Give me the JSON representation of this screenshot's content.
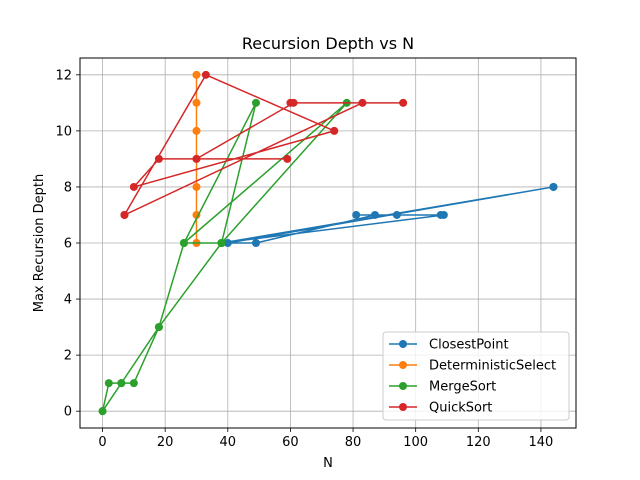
{
  "chart_data": {
    "type": "line",
    "title": "Recursion Depth vs N",
    "xlabel": "N",
    "ylabel": "Max Recursion Depth",
    "xlim": [
      -7.2,
      151.2
    ],
    "ylim": [
      -0.6,
      12.6
    ],
    "xticks": [
      0,
      20,
      40,
      60,
      80,
      100,
      120,
      140
    ],
    "yticks": [
      0,
      2,
      4,
      6,
      8,
      10,
      12
    ],
    "grid": true,
    "legend_position": "lower-right",
    "series": [
      {
        "name": "ClosestPoint",
        "color": "#1f77b4",
        "x": [
          144,
          40,
          49,
          87,
          108,
          81,
          94,
          109,
          38,
          144
        ],
        "y": [
          8,
          6,
          6,
          7,
          7,
          7,
          7,
          7,
          6,
          8
        ]
      },
      {
        "name": "DeterministicSelect",
        "color": "#ff7f0e",
        "x": [
          30,
          30,
          30,
          30,
          30,
          30,
          30
        ],
        "y": [
          6,
          7,
          8,
          9,
          10,
          11,
          12
        ]
      },
      {
        "name": "MergeSort",
        "color": "#2ca02c",
        "x": [
          0,
          2,
          6,
          10,
          18,
          26,
          38,
          78,
          26,
          49,
          38,
          18,
          6,
          0
        ],
        "y": [
          0,
          1,
          1,
          1,
          3,
          6,
          6,
          11,
          6,
          11,
          6,
          3,
          1,
          0
        ]
      },
      {
        "name": "QuickSort",
        "color": "#d62728",
        "x": [
          7,
          33,
          74,
          10,
          18,
          59,
          30,
          61,
          96,
          60,
          83,
          7
        ],
        "y": [
          7,
          12,
          10,
          8,
          9,
          9,
          9,
          11,
          11,
          11,
          11,
          7
        ]
      }
    ]
  }
}
